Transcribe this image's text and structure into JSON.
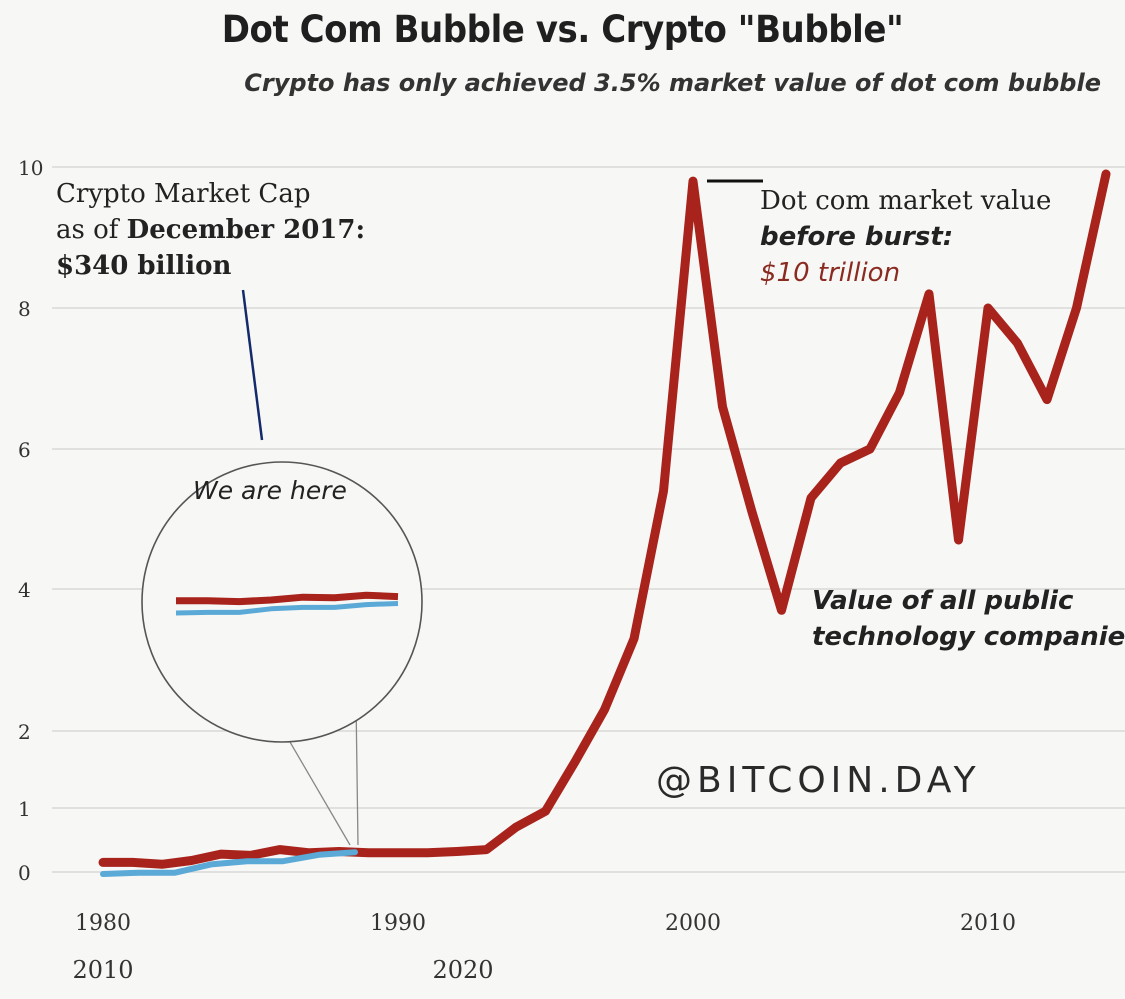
{
  "header": {
    "title": "Dot Com Bubble vs. Crypto \"Bubble\"",
    "subtitle": "Crypto has only achieved 3.5% market value of dot com bubble"
  },
  "annotations": {
    "crypto_line1": "Crypto Market Cap",
    "crypto_line2_prefix": "as of ",
    "crypto_line2_bold": "December 2017:",
    "crypto_line3": "$340 billion",
    "we_are_here": "We are here",
    "dotcom_line1": "Dot com market value",
    "dotcom_line2": "before burst:",
    "dotcom_line3": "$10 trillion",
    "tech_line1": "Value of all public",
    "tech_line2": "technology companies"
  },
  "watermark": "@BITCOIN.DAY",
  "colors": {
    "dotcom_series": "#a8231c",
    "crypto_series": "#5aa9d6",
    "grid": "#d8d8d8",
    "background": "#f7f7f5"
  },
  "chart_data": {
    "type": "line",
    "y_ticks": [
      "0",
      "1",
      "2",
      "4",
      "6",
      "8",
      "10"
    ],
    "x_ticks_primary": [
      "1980",
      "1990",
      "2000",
      "2010"
    ],
    "x_ticks_secondary": [
      "2010",
      "2020"
    ],
    "grid": true,
    "series": [
      {
        "name": "Value of all public technology companies",
        "color": "#a8231c",
        "x": [
          1980,
          1981,
          1982,
          1983,
          1984,
          1985,
          1986,
          1987,
          1988,
          1989,
          1990,
          1991,
          1992,
          1993,
          1994,
          1995,
          1996,
          1997,
          1998,
          1999,
          2000,
          2001,
          2002,
          2003,
          2004,
          2005,
          2006,
          2007,
          2008,
          2009,
          2010,
          2011,
          2012,
          2013,
          2014
        ],
        "values": [
          0.15,
          0.15,
          0.12,
          0.18,
          0.28,
          0.26,
          0.35,
          0.3,
          0.32,
          0.3,
          0.3,
          0.3,
          0.32,
          0.35,
          0.7,
          0.95,
          1.6,
          2.3,
          3.3,
          5.4,
          9.8,
          6.6,
          5.1,
          3.7,
          5.3,
          5.8,
          6.0,
          6.8,
          8.2,
          4.7,
          8.0,
          7.5,
          6.7,
          8.0,
          9.9
        ]
      },
      {
        "name": "Crypto Market Cap",
        "color": "#5aa9d6",
        "x": [
          2010,
          2011,
          2012,
          2013,
          2014,
          2015,
          2016,
          2017
        ],
        "values": [
          0.0,
          0.02,
          0.02,
          0.15,
          0.2,
          0.2,
          0.3,
          0.34
        ]
      }
    ]
  }
}
